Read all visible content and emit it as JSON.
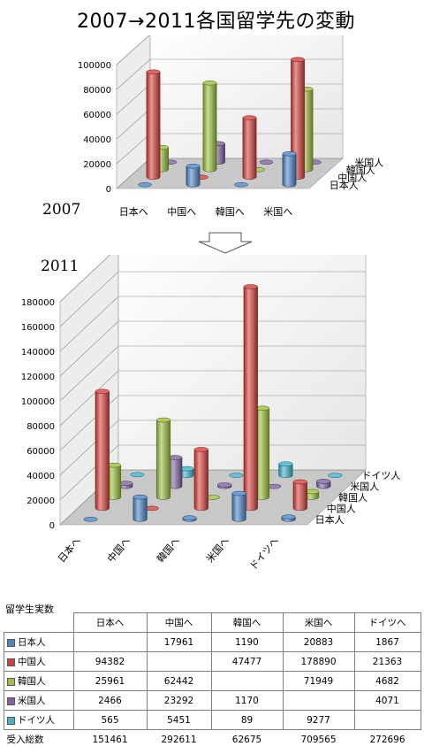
{
  "title": "2007→2011各国留学先の変動",
  "colors": {
    "日本人": "#4a86c8",
    "中国人": "#d9403b",
    "韓国人": "#9bc13a",
    "米国人": "#8064a2",
    "ドイツ人": "#3eb3cd"
  },
  "chart_data": [
    {
      "type": "bar3d",
      "title": "2007",
      "categories": [
        "日本へ",
        "中国へ",
        "韓国へ",
        "米国へ"
      ],
      "series_order": [
        "日本人",
        "中国人",
        "韓国人",
        "米国人"
      ],
      "series": [
        {
          "name": "日本人",
          "values": [
            0,
            15000,
            0,
            25000
          ]
        },
        {
          "name": "中国人",
          "values": [
            85000,
            0,
            48000,
            95000
          ]
        },
        {
          "name": "韓国人",
          "values": [
            18000,
            70000,
            0,
            65000
          ]
        },
        {
          "name": "米国人",
          "values": [
            0,
            15000,
            0,
            0
          ]
        }
      ],
      "ylim": [
        0,
        100000
      ],
      "yticks": [
        "100000",
        "80000",
        "60000",
        "40000",
        "20000",
        "0"
      ]
    },
    {
      "type": "bar3d",
      "title": "2011",
      "categories": [
        "日本へ",
        "中国へ",
        "韓国へ",
        "米国へ",
        "ドイツへ"
      ],
      "series_order": [
        "日本人",
        "中国人",
        "韓国人",
        "米国人",
        "ドイツ人"
      ],
      "series": [
        {
          "name": "日本人",
          "values": [
            0,
            17961,
            1190,
            20883,
            1867
          ]
        },
        {
          "name": "中国人",
          "values": [
            94382,
            0,
            47477,
            178890,
            21363
          ]
        },
        {
          "name": "韓国人",
          "values": [
            25961,
            62442,
            0,
            71949,
            4682
          ]
        },
        {
          "name": "米国人",
          "values": [
            2466,
            23292,
            1170,
            0,
            4071
          ]
        },
        {
          "name": "ドイツ人",
          "values": [
            565,
            5451,
            89,
            9277,
            0
          ]
        }
      ],
      "ylim": [
        0,
        180000
      ],
      "yticks": [
        "180000",
        "160000",
        "140000",
        "120000",
        "100000",
        "80000",
        "60000",
        "40000",
        "20000",
        "0"
      ]
    }
  ],
  "table": {
    "title": "留学生実数",
    "columns": [
      "日本へ",
      "中国へ",
      "韓国へ",
      "米国へ",
      "ドイツへ"
    ],
    "rows": [
      {
        "label": "日本人",
        "cells": [
          "",
          "17961",
          "1190",
          "20883",
          "1867"
        ]
      },
      {
        "label": "中国人",
        "cells": [
          "94382",
          "",
          "47477",
          "178890",
          "21363"
        ]
      },
      {
        "label": "韓国人",
        "cells": [
          "25961",
          "62442",
          "",
          "71949",
          "4682"
        ]
      },
      {
        "label": "米国人",
        "cells": [
          "2466",
          "23292",
          "1170",
          "",
          "4071"
        ]
      },
      {
        "label": "ドイツ人",
        "cells": [
          "565",
          "5451",
          "89",
          "9277",
          ""
        ]
      }
    ],
    "total": {
      "label": "受入総数",
      "cells": [
        "151461",
        "292611",
        "62675",
        "709565",
        "272696"
      ]
    }
  }
}
